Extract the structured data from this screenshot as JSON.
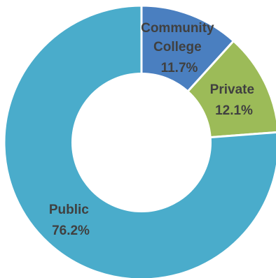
{
  "chart_data": {
    "type": "pie",
    "donut": true,
    "legend": "none",
    "slices": [
      {
        "label_lines": [
          "Community",
          "College"
        ],
        "value": 11.7,
        "value_label": "11.7%",
        "color": "#4a7fc0"
      },
      {
        "label_lines": [
          "Private"
        ],
        "value": 12.1,
        "value_label": "12.1%",
        "color": "#9cbb58"
      },
      {
        "label_lines": [
          "Public"
        ],
        "value": 76.2,
        "value_label": "76.2%",
        "color": "#4aaccb"
      }
    ],
    "start_angle_deg": 0,
    "direction": "clockwise"
  }
}
